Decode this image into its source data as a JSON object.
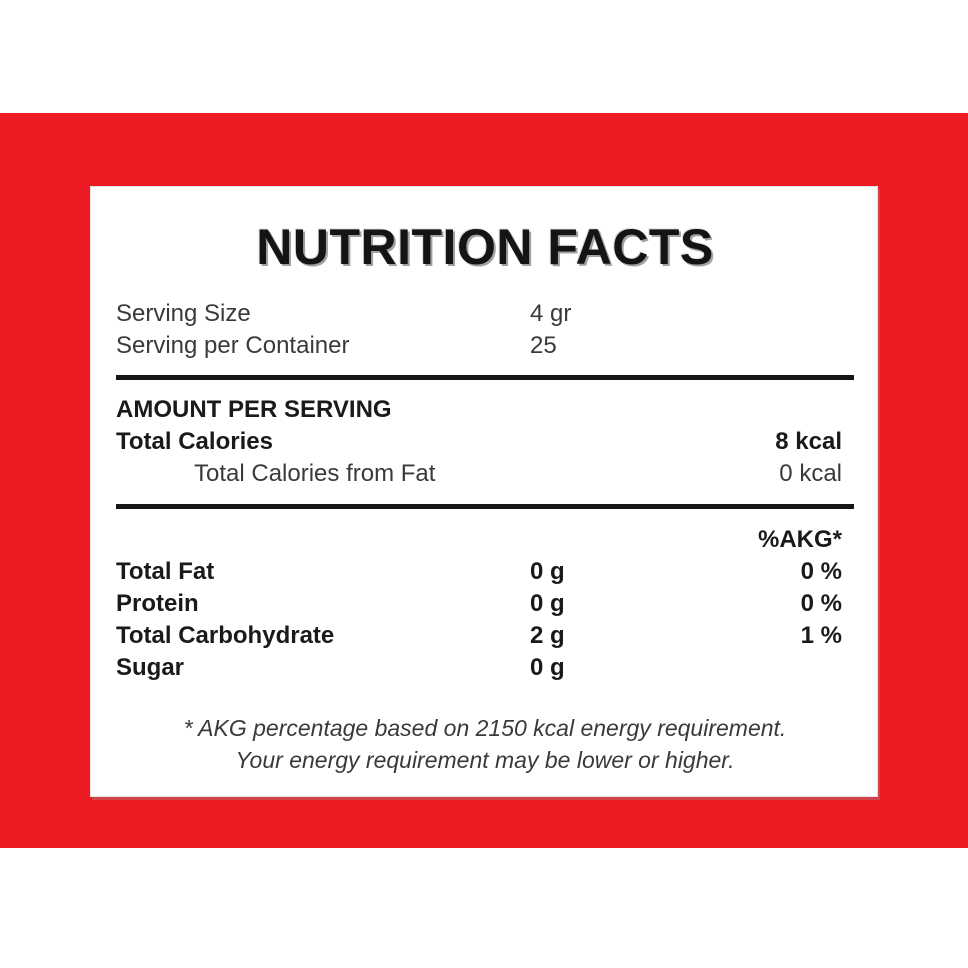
{
  "colors": {
    "background_red": "#ED1C24",
    "band_white": "#FFFFFF",
    "card_white": "#FFFFFF",
    "text_black": "#1A1A1A",
    "text_gray": "#3A3A3A"
  },
  "card": {
    "title": "NUTRITION FACTS",
    "serving_info": {
      "rows": [
        {
          "label": "Serving Size",
          "value": "4 gr"
        },
        {
          "label": "Serving per Container",
          "value": "25"
        }
      ]
    },
    "amount_per_serving": {
      "header": "AMOUNT PER SERVING",
      "rows": [
        {
          "label": "Total Calories",
          "value": "8 kcal"
        },
        {
          "label": "Total Calories from Fat",
          "value": "0 kcal"
        }
      ]
    },
    "nutrients": {
      "akg_header": "%AKG*",
      "rows": [
        {
          "label": "Total Fat",
          "amount": "0 g",
          "akg": "0 %"
        },
        {
          "label": "Protein",
          "amount": "0 g",
          "akg": "0 %"
        },
        {
          "label": "Total Carbohydrate",
          "amount": "2 g",
          "akg": "1 %"
        },
        {
          "label": "Sugar",
          "amount": "0 g",
          "akg": ""
        }
      ]
    },
    "footnote": {
      "line1": "* AKG percentage based on 2150 kcal energy requirement.",
      "line2": "Your energy requirement may be lower or higher."
    }
  }
}
